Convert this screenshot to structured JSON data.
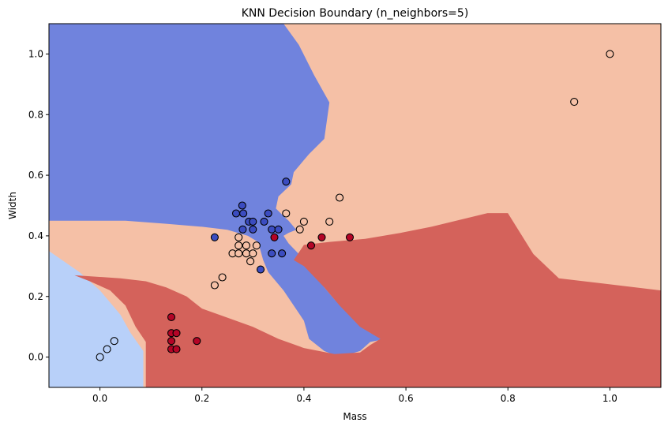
{
  "chart_data": {
    "type": "scatter",
    "title": "KNN Decision Boundary (n_neighbors=5)",
    "xlabel": "Mass",
    "ylabel": "Width",
    "xlim": [
      -0.1,
      1.1
    ],
    "ylim": [
      -0.1,
      1.1
    ],
    "xticks": [
      0.0,
      0.2,
      0.4,
      0.6,
      0.8,
      1.0
    ],
    "yticks": [
      0.0,
      0.2,
      0.4,
      0.6,
      0.8,
      1.0
    ],
    "xtick_labels": [
      "0.0",
      "0.2",
      "0.4",
      "0.6",
      "0.8",
      "1.0"
    ],
    "ytick_labels": [
      "0.0",
      "0.2",
      "0.4",
      "0.6",
      "0.8",
      "1.0"
    ],
    "grid": false,
    "classes": [
      {
        "id": 0,
        "color": "#3b4cc0",
        "region_color": "#7083dd"
      },
      {
        "id": 1,
        "color": "#b8d0f9",
        "region_color": "#b8d0f9"
      },
      {
        "id": 2,
        "color": "#f5c0a6",
        "region_color": "#f5c0a6"
      },
      {
        "id": 3,
        "color": "#b40426",
        "region_color": "#d4625b"
      }
    ],
    "regions": [
      {
        "class": 2,
        "polygon": [
          [
            -0.1,
            -0.1
          ],
          [
            1.1,
            -0.1
          ],
          [
            1.1,
            1.1
          ],
          [
            -0.1,
            1.1
          ]
        ]
      },
      {
        "class": 0,
        "polygon": [
          [
            -0.1,
            1.1
          ],
          [
            0.36,
            1.1
          ],
          [
            0.39,
            1.03
          ],
          [
            0.42,
            0.93
          ],
          [
            0.45,
            0.84
          ],
          [
            0.44,
            0.72
          ],
          [
            0.41,
            0.67
          ],
          [
            0.4,
            0.65
          ],
          [
            0.38,
            0.61
          ],
          [
            0.375,
            0.57
          ],
          [
            0.35,
            0.53
          ],
          [
            0.345,
            0.49
          ],
          [
            0.36,
            0.465
          ],
          [
            0.37,
            0.45
          ],
          [
            0.385,
            0.42
          ],
          [
            0.37,
            0.41
          ],
          [
            0.36,
            0.4
          ],
          [
            0.37,
            0.375
          ],
          [
            0.39,
            0.34
          ],
          [
            0.42,
            0.29
          ],
          [
            0.44,
            0.23
          ],
          [
            0.46,
            0.19
          ],
          [
            0.49,
            0.14
          ],
          [
            0.53,
            0.08
          ],
          [
            0.56,
            0.06
          ],
          [
            0.53,
            0.05
          ],
          [
            0.51,
            0.02
          ],
          [
            0.47,
            0.0
          ],
          [
            0.44,
            0.02
          ],
          [
            0.41,
            0.06
          ],
          [
            0.4,
            0.12
          ],
          [
            0.36,
            0.22
          ],
          [
            0.33,
            0.28
          ],
          [
            0.32,
            0.32
          ],
          [
            0.31,
            0.38
          ],
          [
            0.29,
            0.4
          ],
          [
            0.25,
            0.42
          ],
          [
            0.2,
            0.43
          ],
          [
            0.13,
            0.44
          ],
          [
            0.05,
            0.45
          ],
          [
            -0.1,
            0.45
          ]
        ]
      },
      {
        "class": 1,
        "polygon": [
          [
            -0.1,
            -0.1
          ],
          [
            0.085,
            -0.1
          ],
          [
            0.085,
            0.02
          ],
          [
            0.06,
            0.08
          ],
          [
            0.04,
            0.14
          ],
          [
            0.0,
            0.22
          ],
          [
            -0.04,
            0.28
          ],
          [
            -0.1,
            0.35
          ]
        ]
      },
      {
        "class": 3,
        "polygon": [
          [
            0.09,
            -0.1
          ],
          [
            1.1,
            -0.1
          ],
          [
            1.1,
            0.22
          ],
          [
            1.0,
            0.24
          ],
          [
            0.9,
            0.26
          ],
          [
            0.85,
            0.34
          ],
          [
            0.8,
            0.475
          ],
          [
            0.76,
            0.475
          ],
          [
            0.65,
            0.43
          ],
          [
            0.59,
            0.41
          ],
          [
            0.52,
            0.39
          ],
          [
            0.45,
            0.38
          ],
          [
            0.4,
            0.37
          ],
          [
            0.38,
            0.32
          ],
          [
            0.4,
            0.3
          ],
          [
            0.44,
            0.23
          ],
          [
            0.47,
            0.17
          ],
          [
            0.51,
            0.1
          ],
          [
            0.55,
            0.06
          ],
          [
            0.53,
            0.04
          ],
          [
            0.51,
            0.015
          ],
          [
            0.46,
            0.01
          ],
          [
            0.4,
            0.03
          ],
          [
            0.35,
            0.06
          ],
          [
            0.3,
            0.1
          ],
          [
            0.25,
            0.13
          ],
          [
            0.2,
            0.16
          ],
          [
            0.17,
            0.2
          ],
          [
            0.13,
            0.23
          ],
          [
            0.09,
            0.25
          ],
          [
            0.04,
            0.26
          ],
          [
            -0.05,
            0.27
          ],
          [
            -0.02,
            0.25
          ],
          [
            0.02,
            0.22
          ],
          [
            0.05,
            0.17
          ],
          [
            0.07,
            0.1
          ],
          [
            0.09,
            0.05
          ]
        ]
      }
    ],
    "points": [
      {
        "x": 0.0,
        "y": 0.0,
        "class": 1
      },
      {
        "x": 0.014,
        "y": 0.026,
        "class": 1
      },
      {
        "x": 0.028,
        "y": 0.053,
        "class": 1
      },
      {
        "x": 1.0,
        "y": 1.0,
        "class": 2
      },
      {
        "x": 0.93,
        "y": 0.842,
        "class": 2
      },
      {
        "x": 0.14,
        "y": 0.132,
        "class": 3
      },
      {
        "x": 0.14,
        "y": 0.079,
        "class": 3
      },
      {
        "x": 0.15,
        "y": 0.079,
        "class": 3
      },
      {
        "x": 0.14,
        "y": 0.053,
        "class": 3
      },
      {
        "x": 0.14,
        "y": 0.026,
        "class": 3
      },
      {
        "x": 0.15,
        "y": 0.026,
        "class": 3
      },
      {
        "x": 0.19,
        "y": 0.053,
        "class": 3
      },
      {
        "x": 0.342,
        "y": 0.395,
        "class": 3
      },
      {
        "x": 0.414,
        "y": 0.368,
        "class": 3
      },
      {
        "x": 0.435,
        "y": 0.395,
        "class": 3
      },
      {
        "x": 0.49,
        "y": 0.395,
        "class": 3
      },
      {
        "x": 0.225,
        "y": 0.395,
        "class": 0
      },
      {
        "x": 0.279,
        "y": 0.5,
        "class": 0
      },
      {
        "x": 0.267,
        "y": 0.474,
        "class": 0
      },
      {
        "x": 0.281,
        "y": 0.474,
        "class": 0
      },
      {
        "x": 0.292,
        "y": 0.447,
        "class": 0
      },
      {
        "x": 0.3,
        "y": 0.447,
        "class": 0
      },
      {
        "x": 0.322,
        "y": 0.447,
        "class": 0
      },
      {
        "x": 0.33,
        "y": 0.474,
        "class": 0
      },
      {
        "x": 0.28,
        "y": 0.421,
        "class": 0
      },
      {
        "x": 0.3,
        "y": 0.421,
        "class": 0
      },
      {
        "x": 0.337,
        "y": 0.421,
        "class": 0
      },
      {
        "x": 0.35,
        "y": 0.421,
        "class": 0
      },
      {
        "x": 0.337,
        "y": 0.342,
        "class": 0
      },
      {
        "x": 0.357,
        "y": 0.342,
        "class": 0
      },
      {
        "x": 0.315,
        "y": 0.289,
        "class": 0
      },
      {
        "x": 0.365,
        "y": 0.579,
        "class": 0
      },
      {
        "x": 0.47,
        "y": 0.526,
        "class": 2
      },
      {
        "x": 0.365,
        "y": 0.474,
        "class": 2
      },
      {
        "x": 0.4,
        "y": 0.447,
        "class": 2
      },
      {
        "x": 0.45,
        "y": 0.447,
        "class": 2
      },
      {
        "x": 0.392,
        "y": 0.421,
        "class": 2
      },
      {
        "x": 0.272,
        "y": 0.395,
        "class": 2
      },
      {
        "x": 0.272,
        "y": 0.368,
        "class": 2
      },
      {
        "x": 0.287,
        "y": 0.368,
        "class": 2
      },
      {
        "x": 0.307,
        "y": 0.368,
        "class": 2
      },
      {
        "x": 0.26,
        "y": 0.342,
        "class": 2
      },
      {
        "x": 0.272,
        "y": 0.342,
        "class": 2
      },
      {
        "x": 0.287,
        "y": 0.342,
        "class": 2
      },
      {
        "x": 0.3,
        "y": 0.342,
        "class": 2
      },
      {
        "x": 0.295,
        "y": 0.316,
        "class": 2
      },
      {
        "x": 0.24,
        "y": 0.263,
        "class": 2
      },
      {
        "x": 0.225,
        "y": 0.237,
        "class": 2
      }
    ]
  }
}
